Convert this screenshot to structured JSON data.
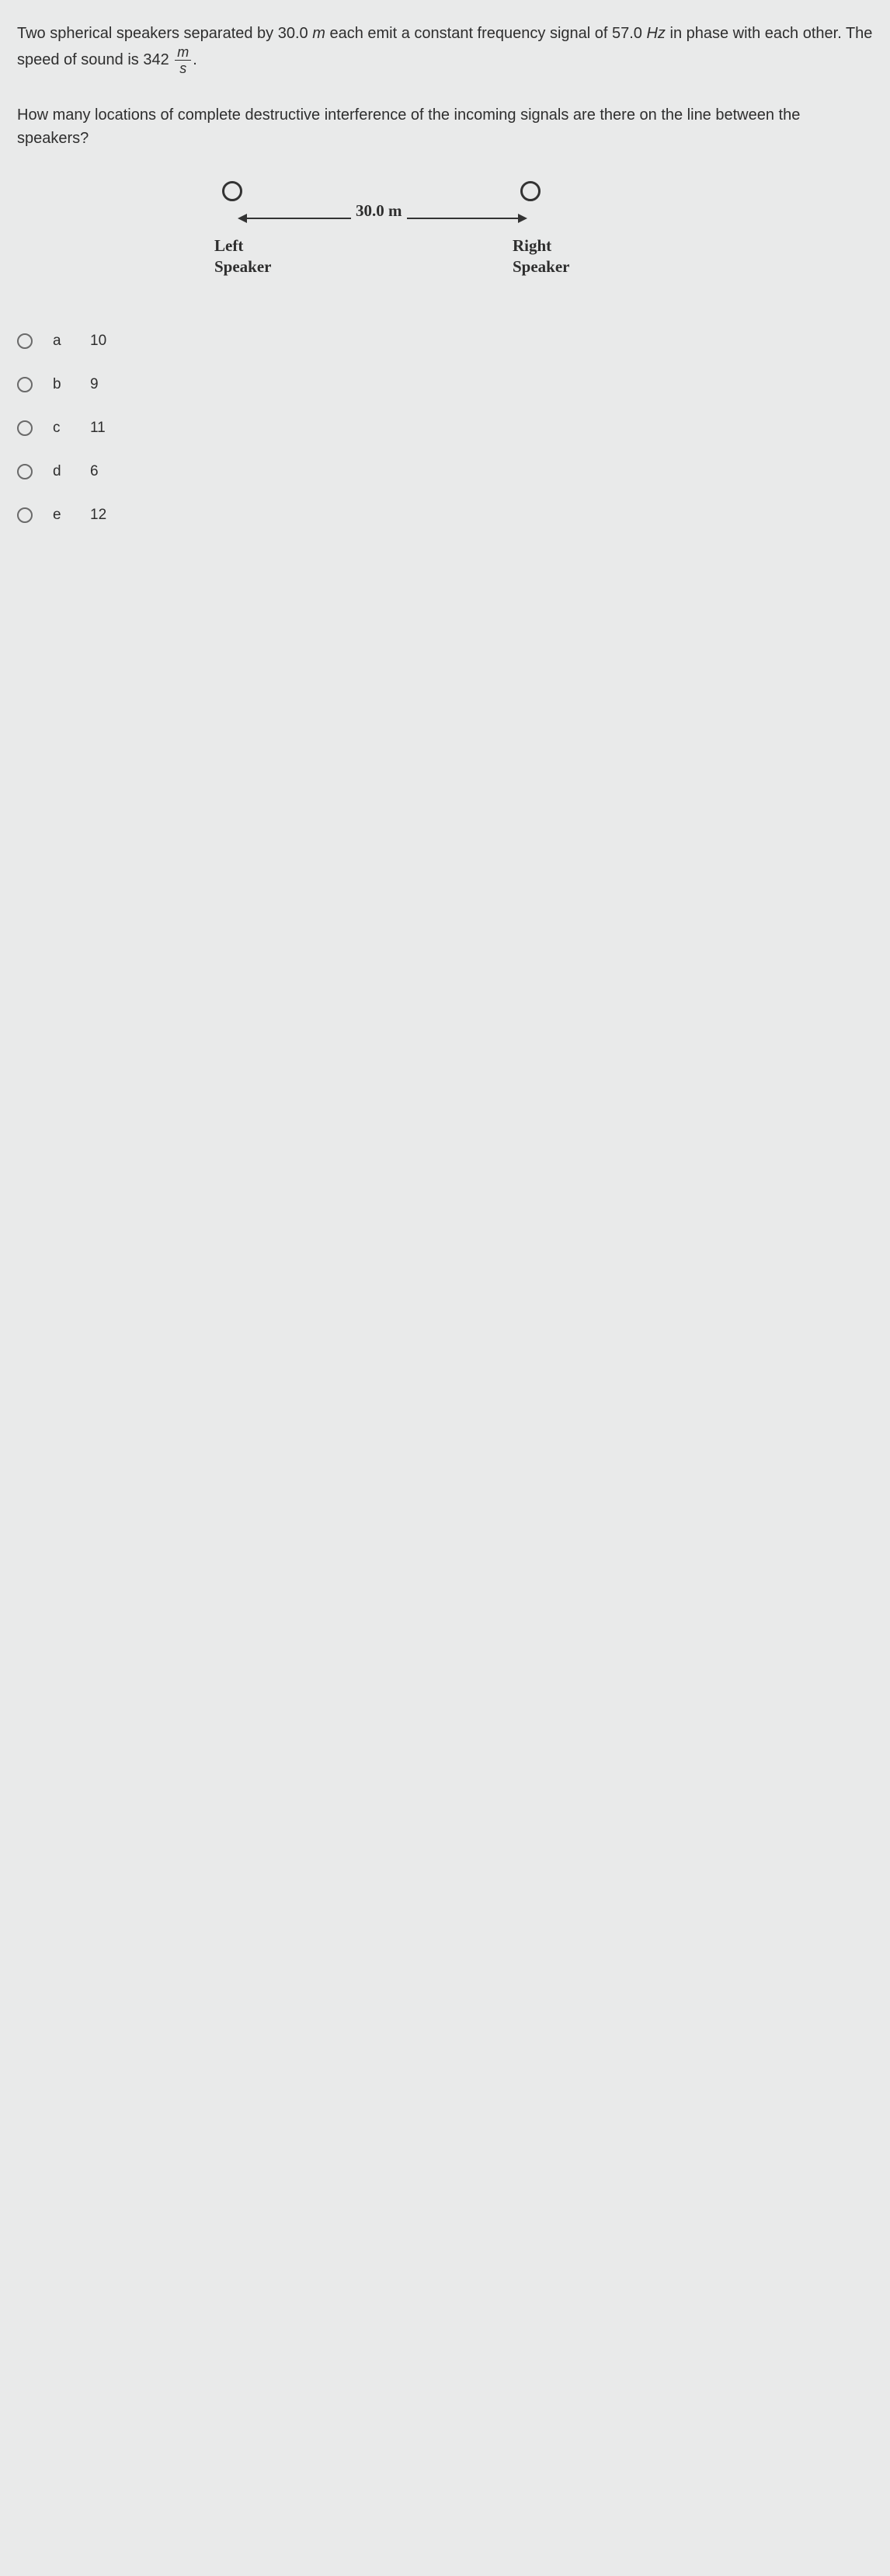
{
  "question": {
    "main_prefix": "Two spherical speakers separated by 30.0 ",
    "unit_m": "m",
    "main_mid1": " each emit a constant frequency signal of 57.0 ",
    "unit_hz": "Hz",
    "main_mid2": " in phase with each other. The speed of sound is 342 ",
    "frac_num": "m",
    "frac_den": "s",
    "main_suffix": ".",
    "sub": "How many locations of complete destructive interference of the incoming signals are there on the line between the speakers?"
  },
  "diagram": {
    "distance_label": "30.0 m",
    "left_label_1": "Left",
    "left_label_2": "Speaker",
    "right_label_1": "Right",
    "right_label_2": "Speaker"
  },
  "options": [
    {
      "letter": "a",
      "value": "10"
    },
    {
      "letter": "b",
      "value": "9"
    },
    {
      "letter": "c",
      "value": "11"
    },
    {
      "letter": "d",
      "value": "6"
    },
    {
      "letter": "e",
      "value": "12"
    }
  ]
}
